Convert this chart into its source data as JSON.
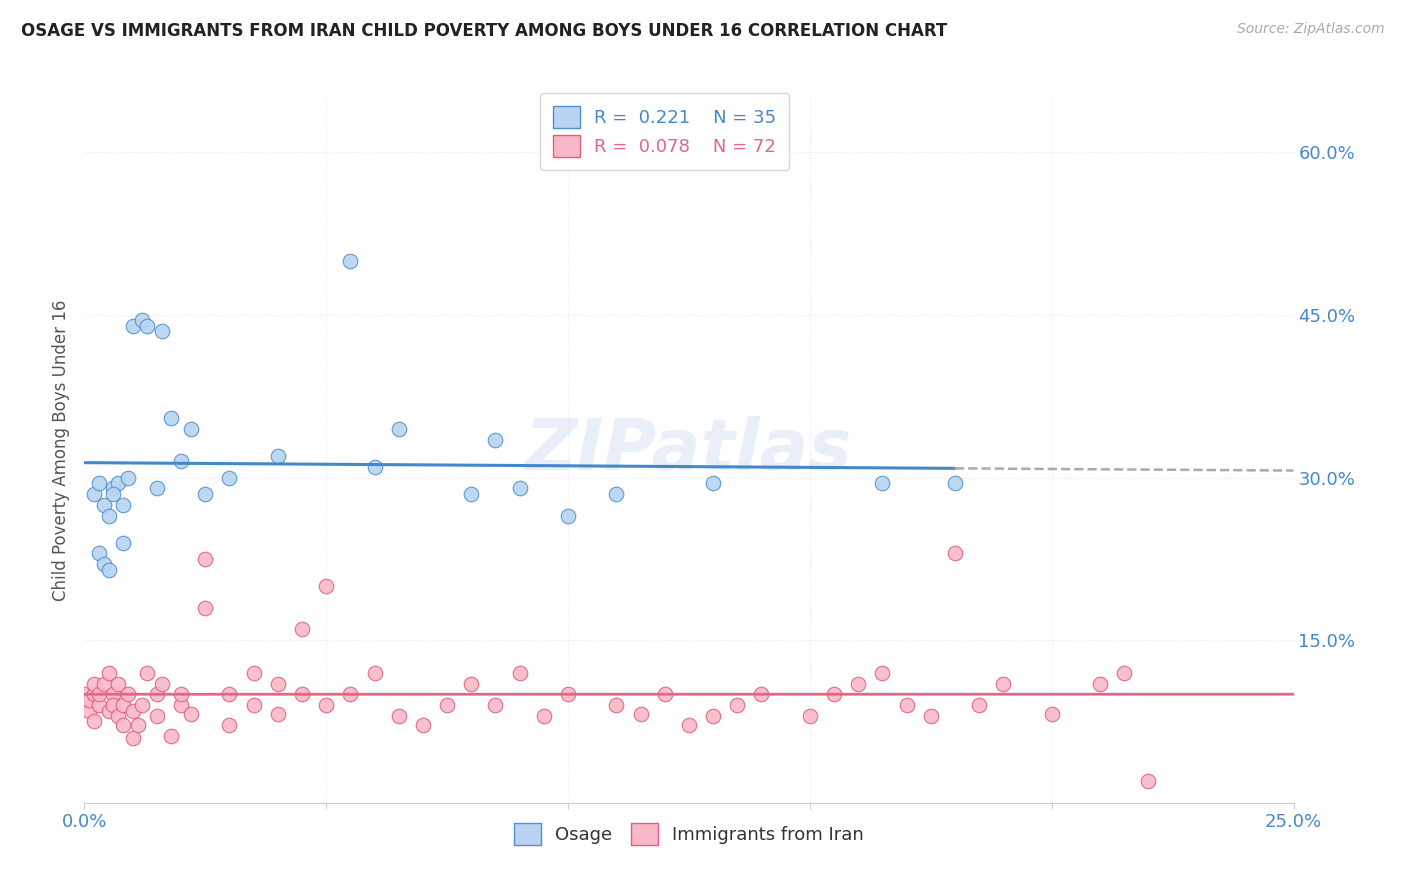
{
  "title": "OSAGE VS IMMIGRANTS FROM IRAN CHILD POVERTY AMONG BOYS UNDER 16 CORRELATION CHART",
  "source": "Source: ZipAtlas.com",
  "ylabel": "Child Poverty Among Boys Under 16",
  "xlim": [
    0.0,
    0.25
  ],
  "ylim": [
    0.0,
    0.65
  ],
  "osage_R": 0.221,
  "osage_N": 35,
  "iran_R": 0.078,
  "iran_N": 72,
  "osage_fill_color": "#b8d4f0",
  "osage_edge_color": "#5090d0",
  "iran_fill_color": "#f8b8c8",
  "iran_edge_color": "#e06080",
  "osage_line_color": "#4488cc",
  "iran_line_color": "#e06880",
  "dashed_line_color": "#aaaaaa",
  "legend_label_osage": "Osage",
  "legend_label_iran": "Immigrants from Iran",
  "background_color": "#ffffff",
  "grid_color": "#e8e8e8",
  "tick_color": "#4488cc",
  "watermark": "ZIPatlas",
  "osage_x": [
    0.002,
    0.003,
    0.004,
    0.005,
    0.006,
    0.007,
    0.008,
    0.009,
    0.01,
    0.012,
    0.013,
    0.015,
    0.016,
    0.018,
    0.02,
    0.022,
    0.025,
    0.03,
    0.04,
    0.055,
    0.06,
    0.065,
    0.08,
    0.085,
    0.09,
    0.1,
    0.11,
    0.13,
    0.165,
    0.18,
    0.003,
    0.004,
    0.005,
    0.006,
    0.008
  ],
  "osage_y": [
    0.285,
    0.295,
    0.275,
    0.265,
    0.29,
    0.295,
    0.275,
    0.3,
    0.44,
    0.445,
    0.44,
    0.29,
    0.435,
    0.355,
    0.315,
    0.345,
    0.285,
    0.3,
    0.32,
    0.5,
    0.31,
    0.345,
    0.285,
    0.335,
    0.29,
    0.265,
    0.285,
    0.295,
    0.295,
    0.295,
    0.23,
    0.22,
    0.215,
    0.285,
    0.24
  ],
  "iran_x": [
    0.0,
    0.001,
    0.001,
    0.002,
    0.002,
    0.002,
    0.003,
    0.003,
    0.004,
    0.005,
    0.005,
    0.006,
    0.006,
    0.007,
    0.007,
    0.008,
    0.008,
    0.009,
    0.01,
    0.01,
    0.011,
    0.012,
    0.013,
    0.015,
    0.015,
    0.016,
    0.018,
    0.02,
    0.02,
    0.022,
    0.025,
    0.025,
    0.03,
    0.03,
    0.035,
    0.035,
    0.04,
    0.04,
    0.045,
    0.05,
    0.055,
    0.06,
    0.065,
    0.07,
    0.075,
    0.08,
    0.085,
    0.09,
    0.095,
    0.1,
    0.11,
    0.115,
    0.12,
    0.125,
    0.13,
    0.135,
    0.14,
    0.15,
    0.155,
    0.16,
    0.165,
    0.17,
    0.175,
    0.18,
    0.185,
    0.19,
    0.2,
    0.21,
    0.215,
    0.22,
    0.045,
    0.05
  ],
  "iran_y": [
    0.1,
    0.085,
    0.095,
    0.1,
    0.11,
    0.075,
    0.09,
    0.1,
    0.11,
    0.085,
    0.12,
    0.1,
    0.09,
    0.08,
    0.11,
    0.072,
    0.09,
    0.1,
    0.06,
    0.085,
    0.072,
    0.09,
    0.12,
    0.1,
    0.08,
    0.11,
    0.062,
    0.09,
    0.1,
    0.082,
    0.225,
    0.18,
    0.1,
    0.072,
    0.12,
    0.09,
    0.11,
    0.082,
    0.16,
    0.09,
    0.1,
    0.12,
    0.08,
    0.072,
    0.09,
    0.11,
    0.09,
    0.12,
    0.08,
    0.1,
    0.09,
    0.082,
    0.1,
    0.072,
    0.08,
    0.09,
    0.1,
    0.08,
    0.1,
    0.11,
    0.12,
    0.09,
    0.08,
    0.23,
    0.09,
    0.11,
    0.082,
    0.11,
    0.12,
    0.02,
    0.1,
    0.2
  ]
}
